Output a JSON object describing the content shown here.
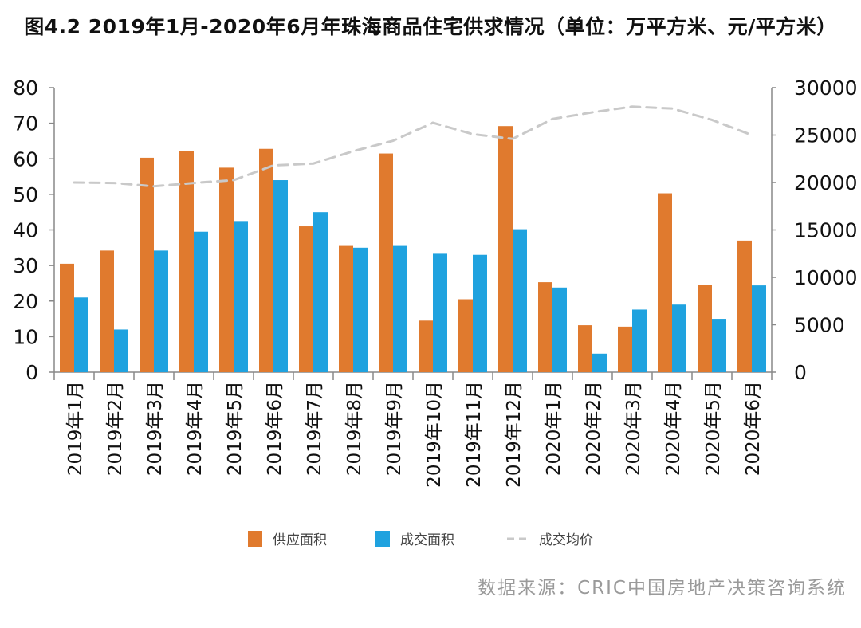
{
  "title": "图4.2 2019年1月-2020年6月年珠海商品住宅供求情况（单位：万平方米、元/平方米）",
  "source": "数据来源：CRIC中国房地产决策咨询系统",
  "colors": {
    "supply": "#E07A2E",
    "deal": "#1FA2DF",
    "price": "#C9C9C9",
    "axis": "#888888"
  },
  "chart_data": {
    "type": "bar",
    "categories": [
      "2019年1月",
      "2019年2月",
      "2019年3月",
      "2019年4月",
      "2019年5月",
      "2019年6月",
      "2019年7月",
      "2019年8月",
      "2019年9月",
      "2019年10月",
      "2019年11月",
      "2019年12月",
      "2020年1月",
      "2020年2月",
      "2020年3月",
      "2020年4月",
      "2020年5月",
      "2020年6月"
    ],
    "series": [
      {
        "name": "供应面积",
        "kind": "bar",
        "axis": "left",
        "values": [
          30.5,
          34.2,
          60.3,
          62.2,
          57.5,
          62.8,
          41.0,
          35.5,
          61.5,
          14.5,
          20.5,
          69.2,
          25.3,
          13.2,
          12.8,
          50.3,
          24.5,
          37.0
        ]
      },
      {
        "name": "成交面积",
        "kind": "bar",
        "axis": "left",
        "values": [
          21.0,
          12.0,
          34.2,
          39.5,
          42.5,
          54.0,
          45.0,
          35.0,
          35.5,
          33.3,
          33.0,
          40.2,
          23.8,
          5.2,
          17.6,
          19.0,
          15.0,
          24.4
        ]
      },
      {
        "name": "成交均价",
        "kind": "line",
        "style": "dashed",
        "axis": "right",
        "values": [
          20000,
          19950,
          19600,
          19950,
          20250,
          21800,
          22000,
          23300,
          24400,
          26300,
          25100,
          24600,
          26700,
          27400,
          28000,
          27800,
          26600,
          25000
        ]
      }
    ],
    "y_left": {
      "min": 0,
      "max": 80,
      "ticks": [
        0,
        10,
        20,
        30,
        40,
        50,
        60,
        70,
        80
      ]
    },
    "y_right": {
      "min": 0,
      "max": 30000,
      "ticks": [
        0,
        5000,
        10000,
        15000,
        20000,
        25000,
        30000
      ]
    },
    "legend_position": "bottom",
    "grid": false
  }
}
